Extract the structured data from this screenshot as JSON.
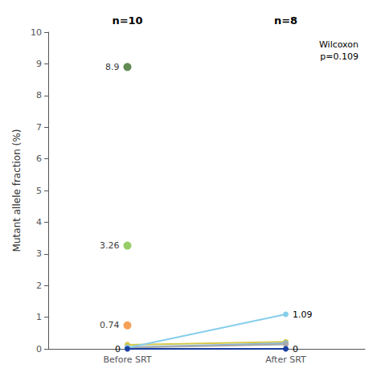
{
  "chart_data": {
    "type": "line",
    "ylabel": "Mutant allele fraction (%)",
    "categories": [
      "Before SRT",
      "After SRT"
    ],
    "ylim": [
      0,
      10
    ],
    "yticks": [
      0,
      1,
      2,
      3,
      4,
      5,
      6,
      7,
      8,
      9,
      10
    ],
    "grid": false,
    "series": [
      {
        "type": "scatter",
        "color": "#3a6e28",
        "values": [
          8.9,
          null
        ],
        "data_labels": true
      },
      {
        "type": "scatter",
        "color": "#7dc142",
        "values": [
          3.26,
          null
        ],
        "data_labels": true
      },
      {
        "type": "scatter",
        "color": "#f28a30",
        "values": [
          0.74,
          null
        ],
        "data_labels": true
      },
      {
        "type": "line",
        "color": "#d4c84a",
        "values": [
          0.13,
          0.22
        ]
      },
      {
        "type": "line",
        "color": "#88b8d8",
        "values": [
          0.05,
          0.18
        ]
      },
      {
        "type": "line",
        "color": "#aaaaaa",
        "values": [
          0.04,
          0.14
        ]
      },
      {
        "type": "line",
        "color": "#87ceeb",
        "values": [
          0.03,
          1.09
        ],
        "data_labels": true,
        "value_labels": [
          null,
          "1.09"
        ]
      },
      {
        "type": "line",
        "color": "#1a3fa0",
        "values": [
          0.0,
          0.0
        ],
        "data_labels": true
      }
    ],
    "annotations": [
      {
        "text": "n=10",
        "x": "Before SRT"
      },
      {
        "text": "n=8",
        "x": "After SRT"
      },
      {
        "text": "Wilcoxon\np=0.109"
      }
    ]
  }
}
